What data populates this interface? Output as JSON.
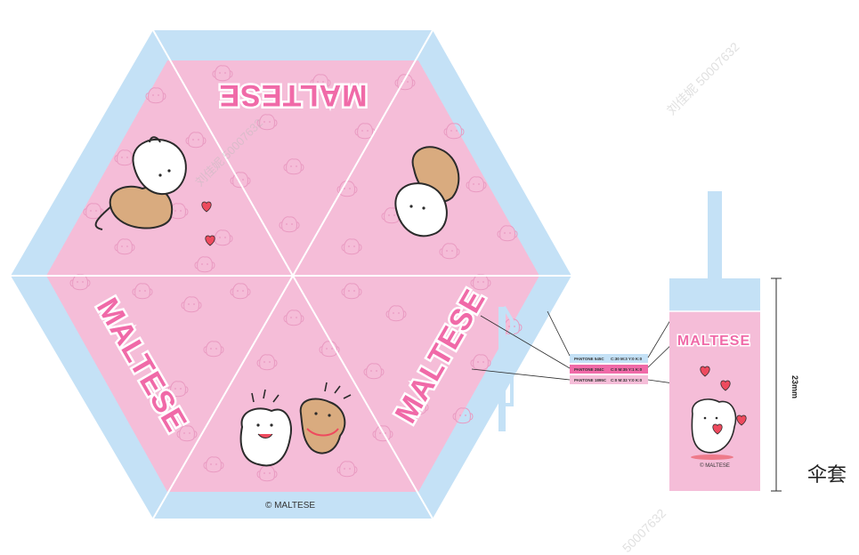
{
  "colors": {
    "pink": "#f5bdd8",
    "blue": "#c4e1f6",
    "brand_pink": "#f06aa8",
    "heart": "#ee4a5e",
    "outline": "#2b2b2b",
    "pattern": "#e99ac1",
    "tan": "#d9ab7f"
  },
  "umbrella": {
    "brand_top": "MALTESE",
    "brand_left": "MALTESE",
    "brand_right": "MALTESE",
    "copyright": "© MALTESE"
  },
  "swatches": [
    {
      "pantone": "PANTONE 545C",
      "cmyk": "C:30 M:3 Y:0 K:0",
      "color": "#c4e1f6"
    },
    {
      "pantone": "PANTONE 284C",
      "cmyk": "C:0 M:35 Y:1 K:0",
      "color": "#f06aa8"
    },
    {
      "pantone": "PANTONE 1895C",
      "cmyk": "C:0 M:32 Y:0 K:0",
      "color": "#f5bdd8"
    }
  ],
  "sleeve": {
    "brand": "MALTESE",
    "copyright": "© MALTESE",
    "dimension": "23mm",
    "caption": "伞套"
  },
  "watermarks": {
    "top_right": "刘佳妮 50007632",
    "bottom": "50007632",
    "center": "刘佳妮 50007632"
  },
  "icons": [
    "heart-icon",
    "white-dog-icon",
    "brown-dog-icon",
    "dog-pattern-icon"
  ]
}
